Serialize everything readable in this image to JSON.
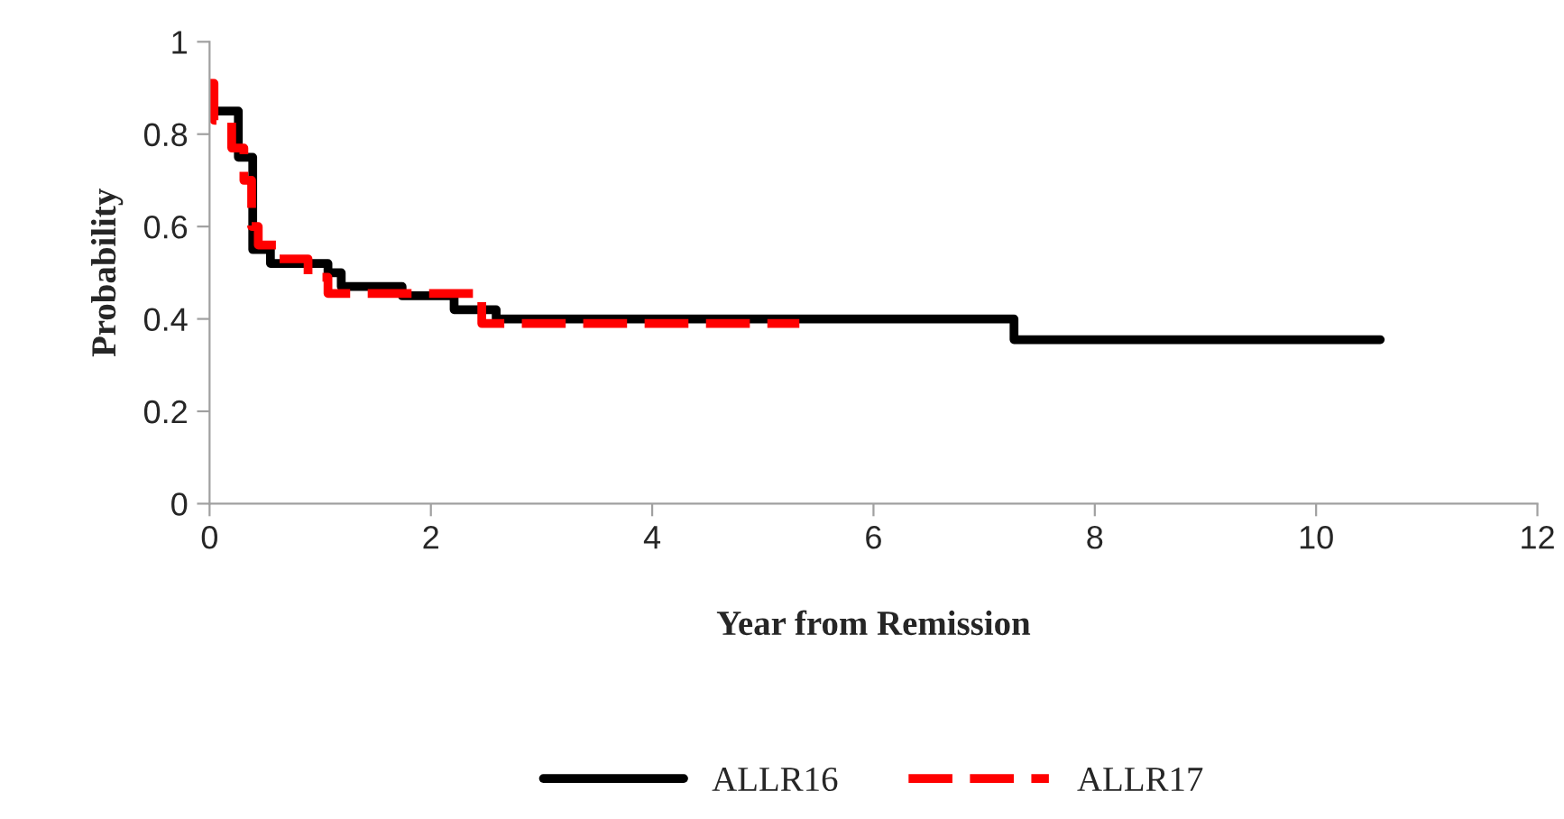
{
  "chart_data": {
    "type": "step",
    "xlabel": "Year from Remission",
    "ylabel": "Probability",
    "xlim": [
      0,
      12
    ],
    "xticks": [
      0,
      2,
      4,
      6,
      8,
      10,
      12
    ],
    "ylim": [
      0,
      1
    ],
    "yticks": [
      0,
      0.2,
      0.4,
      0.6,
      0.8,
      1
    ],
    "grid": false,
    "legend": "bottom",
    "series": [
      {
        "name": "ALLR16",
        "color": "#000000",
        "line_style": "solid",
        "x": [
          0,
          0.26,
          0.39,
          0.55,
          1.07,
          1.19,
          1.74,
          2.21,
          2.59,
          7.27,
          10.58
        ],
        "values": [
          0.85,
          0.75,
          0.55,
          0.52,
          0.5,
          0.47,
          0.45,
          0.42,
          0.4,
          0.355,
          0.355
        ]
      },
      {
        "name": "ALLR17",
        "color": "#ff0000",
        "line_style": "dashed",
        "x": [
          0,
          0.04,
          0.2,
          0.31,
          0.38,
          0.44,
          0.61,
          0.89,
          1.07,
          2.46,
          5.33
        ],
        "values": [
          0.91,
          0.83,
          0.77,
          0.7,
          0.6,
          0.56,
          0.53,
          0.49,
          0.455,
          0.39,
          0.39
        ]
      }
    ]
  }
}
